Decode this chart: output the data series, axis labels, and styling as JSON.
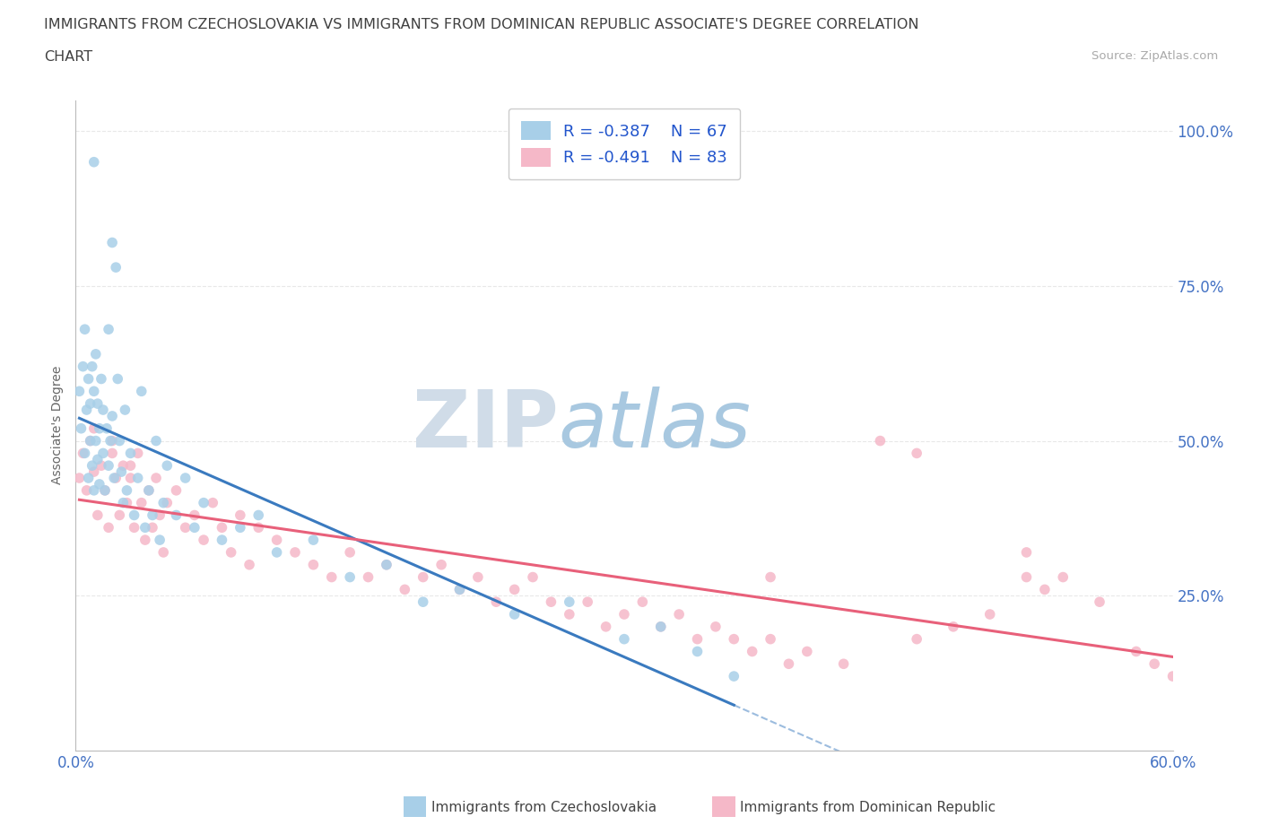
{
  "title_line1": "IMMIGRANTS FROM CZECHOSLOVAKIA VS IMMIGRANTS FROM DOMINICAN REPUBLIC ASSOCIATE'S DEGREE CORRELATION",
  "title_line2": "CHART",
  "source": "Source: ZipAtlas.com",
  "ylabel": "Associate's Degree",
  "xlim": [
    0.0,
    0.6
  ],
  "ylim": [
    0.0,
    1.05
  ],
  "x_ticks": [
    0.0,
    0.1,
    0.2,
    0.3,
    0.4,
    0.5,
    0.6
  ],
  "x_tick_labels": [
    "0.0%",
    "",
    "",
    "",
    "",
    "",
    "60.0%"
  ],
  "y_ticks": [
    0.25,
    0.5,
    0.75,
    1.0
  ],
  "y_tick_labels": [
    "25.0%",
    "50.0%",
    "75.0%",
    "100.0%"
  ],
  "legend_R1": "R = -0.387",
  "legend_N1": "N = 67",
  "legend_R2": "R = -0.491",
  "legend_N2": "N = 83",
  "color_blue": "#a8cfe8",
  "color_blue_line": "#3a7abf",
  "color_pink": "#f5b8c8",
  "color_pink_line": "#e8607a",
  "watermark_zip": "ZIP",
  "watermark_atlas": "atlas",
  "watermark_zip_color": "#d0dce8",
  "watermark_atlas_color": "#a8c8e0",
  "grid_color": "#e8e8e8",
  "tick_color": "#4472c4",
  "title_color": "#404040",
  "source_color": "#aaaaaa",
  "legend_label1": "Immigrants from Czechoslovakia",
  "legend_label2": "Immigrants from Dominican Republic"
}
